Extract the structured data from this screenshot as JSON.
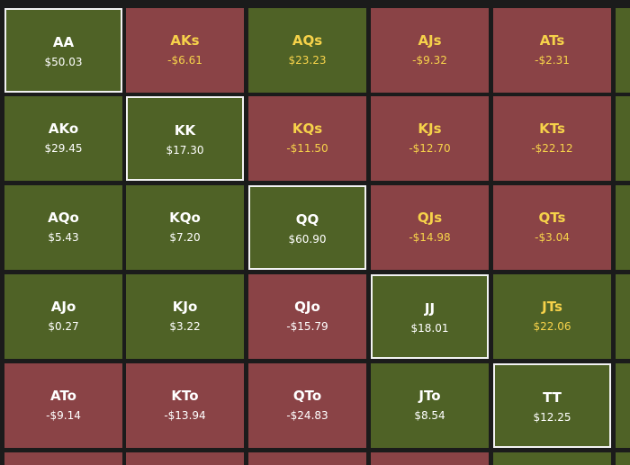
{
  "rows": [
    [
      {
        "hand": "AA",
        "value": "$50.03",
        "color": "#4f6226"
      },
      {
        "hand": "AKs",
        "value": "-$6.61",
        "color": "#8a4346"
      },
      {
        "hand": "AQs",
        "value": "$23.23",
        "color": "#4f6226"
      },
      {
        "hand": "AJs",
        "value": "-$9.32",
        "color": "#8a4346"
      },
      {
        "hand": "ATs",
        "value": "-$2.31",
        "color": "#8a4346"
      }
    ],
    [
      {
        "hand": "AKo",
        "value": "$29.45",
        "color": "#4f6226"
      },
      {
        "hand": "KK",
        "value": "$17.30",
        "color": "#4f6226"
      },
      {
        "hand": "KQs",
        "value": "-$11.50",
        "color": "#8a4346"
      },
      {
        "hand": "KJs",
        "value": "-$12.70",
        "color": "#8a4346"
      },
      {
        "hand": "KTs",
        "value": "-$22.12",
        "color": "#8a4346"
      }
    ],
    [
      {
        "hand": "AQo",
        "value": "$5.43",
        "color": "#4f6226"
      },
      {
        "hand": "KQo",
        "value": "$7.20",
        "color": "#4f6226"
      },
      {
        "hand": "QQ",
        "value": "$60.90",
        "color": "#4f6226"
      },
      {
        "hand": "QJs",
        "value": "-$14.98",
        "color": "#8a4346"
      },
      {
        "hand": "QTs",
        "value": "-$3.04",
        "color": "#8a4346"
      }
    ],
    [
      {
        "hand": "AJo",
        "value": "$0.27",
        "color": "#4f6226"
      },
      {
        "hand": "KJo",
        "value": "$3.22",
        "color": "#4f6226"
      },
      {
        "hand": "QJo",
        "value": "-$15.79",
        "color": "#8a4346"
      },
      {
        "hand": "JJ",
        "value": "$18.01",
        "color": "#4f6226"
      },
      {
        "hand": "JTs",
        "value": "$22.06",
        "color": "#4f6226"
      }
    ],
    [
      {
        "hand": "ATo",
        "value": "-$9.14",
        "color": "#8a4346"
      },
      {
        "hand": "KTo",
        "value": "-$13.94",
        "color": "#8a4346"
      },
      {
        "hand": "QTo",
        "value": "-$24.83",
        "color": "#8a4346"
      },
      {
        "hand": "JTo",
        "value": "$8.54",
        "color": "#4f6226"
      },
      {
        "hand": "TT",
        "value": "$12.25",
        "color": "#4f6226"
      }
    ]
  ]
}
